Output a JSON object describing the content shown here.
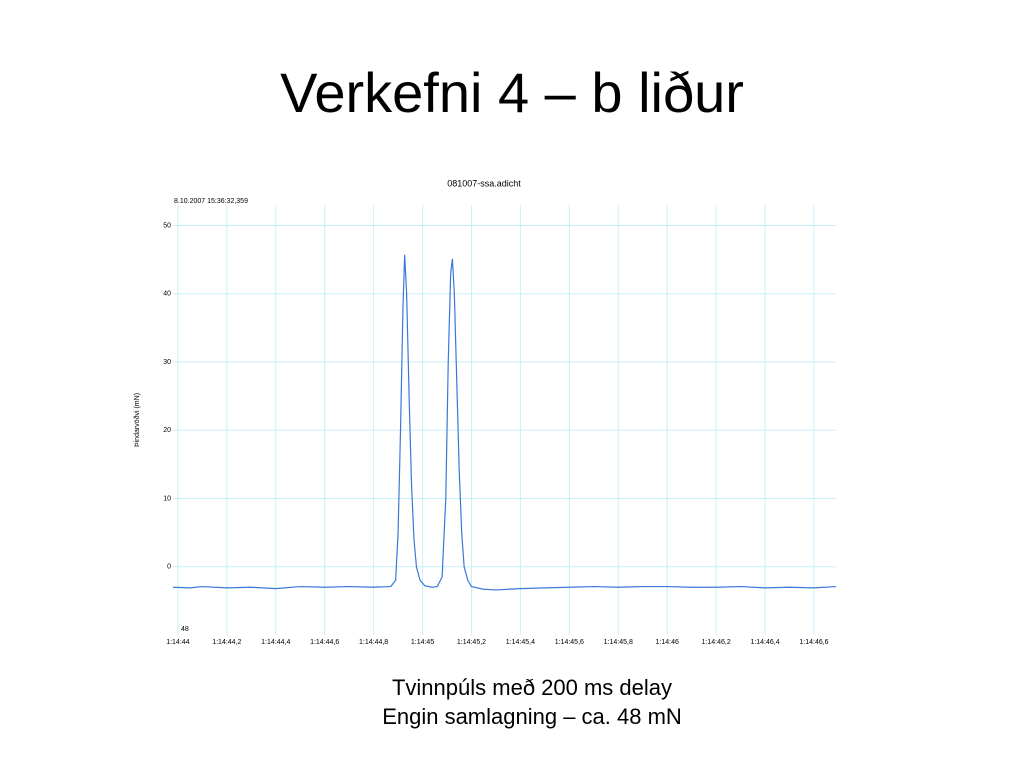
{
  "title": "Verkefni 4 – b liður",
  "caption": [
    "Tvinnpúls með 200 ms delay",
    "Engin samlagning – ca. 48 mN"
  ],
  "chart_data": {
    "type": "line",
    "title": "081007-ssa.adicht",
    "subtitle": "8.10.2007 15:36:32,359",
    "y_label": "Þindarvöðvi (mN)",
    "annotation": "48",
    "xlim": [
      43.98,
      46.69
    ],
    "ylim": [
      -10,
      53
    ],
    "yticks": [
      0,
      10,
      20,
      30,
      40,
      50
    ],
    "xticks": [
      {
        "value": 44.0,
        "label": "1:14:44"
      },
      {
        "value": 44.2,
        "label": "1:14:44,2"
      },
      {
        "value": 44.4,
        "label": "1:14:44,4"
      },
      {
        "value": 44.6,
        "label": "1:14:44,6"
      },
      {
        "value": 44.8,
        "label": "1:14:44,8"
      },
      {
        "value": 45.0,
        "label": "1:14:45"
      },
      {
        "value": 45.2,
        "label": "1:14:45,2"
      },
      {
        "value": 45.4,
        "label": "1:14:45,4"
      },
      {
        "value": 45.6,
        "label": "1:14:45,6"
      },
      {
        "value": 45.8,
        "label": "1:14:45,8"
      },
      {
        "value": 46.0,
        "label": "1:14:46"
      },
      {
        "value": 46.2,
        "label": "1:14:46,2"
      },
      {
        "value": 46.4,
        "label": "1:14:46,4"
      },
      {
        "value": 46.6,
        "label": "1:14:46,6"
      }
    ],
    "grid": true,
    "series": [
      {
        "color": "#3a78d8",
        "x": [
          43.98,
          44.05,
          44.1,
          44.2,
          44.3,
          44.4,
          44.5,
          44.6,
          44.7,
          44.8,
          44.87,
          44.89,
          44.9,
          44.91,
          44.92,
          44.927,
          44.935,
          44.945,
          44.955,
          44.965,
          44.975,
          44.99,
          45.01,
          45.04,
          45.06,
          45.08,
          45.095,
          45.105,
          45.115,
          45.122,
          45.13,
          45.14,
          45.15,
          45.16,
          45.17,
          45.185,
          45.2,
          45.25,
          45.3,
          45.4,
          45.5,
          45.6,
          45.7,
          45.8,
          45.9,
          46.0,
          46.1,
          46.2,
          46.3,
          46.4,
          46.5,
          46.6,
          46.69
        ],
        "values": [
          -3.0,
          -3.1,
          -2.9,
          -3.1,
          -3.0,
          -3.2,
          -2.9,
          -3.0,
          -2.9,
          -3.0,
          -2.9,
          -2.0,
          5,
          20,
          38,
          45.7,
          40,
          25,
          12,
          4,
          0,
          -2,
          -2.8,
          -3.0,
          -2.9,
          -1.5,
          10,
          30,
          43,
          45.1,
          40,
          27,
          14,
          5,
          0,
          -2,
          -2.9,
          -3.3,
          -3.4,
          -3.2,
          -3.1,
          -3.0,
          -2.9,
          -3.0,
          -2.9,
          -2.9,
          -3.0,
          -3.0,
          -2.9,
          -3.1,
          -3.0,
          -3.1,
          -2.9
        ]
      }
    ]
  }
}
